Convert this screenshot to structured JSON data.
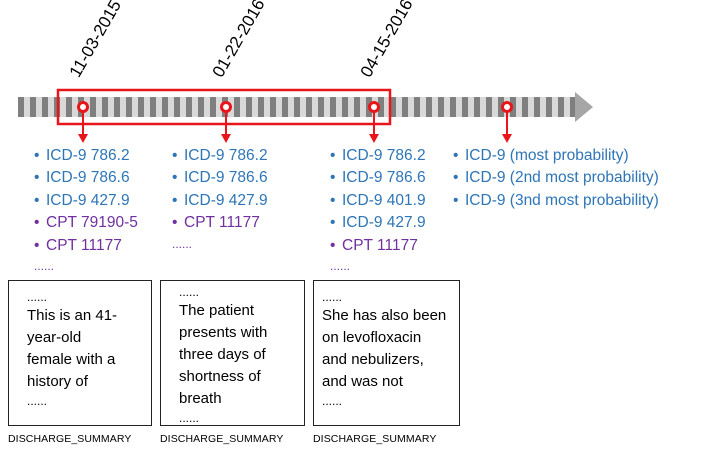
{
  "dates": [
    "11-03-2015",
    "01-22-2016",
    "04-15-2016"
  ],
  "visits": [
    {
      "codes": [
        {
          "text": "ICD-9 786.2",
          "type": "icd"
        },
        {
          "text": "ICD-9 786.6",
          "type": "icd"
        },
        {
          "text": "ICD-9 427.9",
          "type": "icd"
        },
        {
          "text": "CPT 79190-5",
          "type": "cpt"
        },
        {
          "text": "CPT 11177",
          "type": "cpt"
        }
      ],
      "more": "......",
      "note_lines": [
        "......",
        "This is an 41-",
        "year-old",
        "female with a",
        "history of",
        "......"
      ],
      "note_label": "DISCHARGE_SUMMARY"
    },
    {
      "codes": [
        {
          "text": "ICD-9 786.2",
          "type": "icd"
        },
        {
          "text": "ICD-9 786.6",
          "type": "icd"
        },
        {
          "text": "ICD-9 427.9",
          "type": "icd"
        },
        {
          "text": "CPT 11177",
          "type": "cpt"
        }
      ],
      "more": "......",
      "note_lines": [
        "......",
        "The patient",
        "presents with",
        "three days of",
        "shortness of",
        "breath",
        "......"
      ],
      "note_label": "DISCHARGE_SUMMARY"
    },
    {
      "codes": [
        {
          "text": "ICD-9 786.2",
          "type": "icd"
        },
        {
          "text": "ICD-9 786.6",
          "type": "icd"
        },
        {
          "text": "ICD-9 401.9",
          "type": "icd"
        },
        {
          "text": "ICD-9 427.9",
          "type": "icd"
        },
        {
          "text": "CPT 11177",
          "type": "cpt"
        }
      ],
      "more": "......",
      "note_lines": [
        "......",
        "She has also been",
        "on levofloxacin",
        "and nebulizers,",
        "and was not",
        "......"
      ],
      "note_label": "DISCHARGE_SUMMARY"
    }
  ],
  "prediction": [
    {
      "text": "ICD-9 (most probability)",
      "type": "icd"
    },
    {
      "text": "ICD-9 (2nd most probability)",
      "type": "icd"
    },
    {
      "text": "ICD-9 (3nd most probability)",
      "type": "icd"
    }
  ],
  "colors": {
    "icd": "#2e75b6",
    "cpt": "#7030a0",
    "marker": "#e8161b",
    "bar_dark": "#7f7f7f",
    "bar_light": "#d9d9d9"
  }
}
